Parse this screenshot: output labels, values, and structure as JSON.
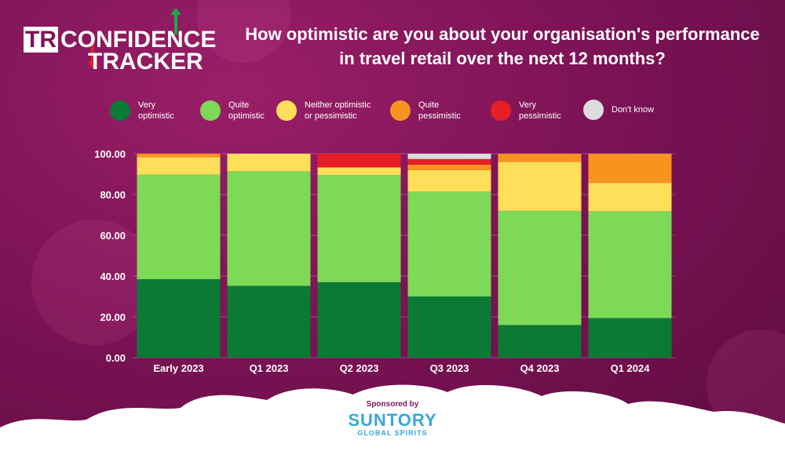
{
  "logo": {
    "tr": "TR",
    "line1_a": "CONFIDEN",
    "line1_b": "C",
    "line1_c": "E",
    "line2": "TRACKER"
  },
  "sponsor": {
    "label": "Sponsored by",
    "brand": "SUNTORY",
    "sub": "GLOBAL SPIRITS"
  },
  "colors": {
    "very_optimistic": "#0a7a35",
    "quite_optimistic": "#7ed957",
    "neither": "#ffde59",
    "quite_pessimistic": "#f8931f",
    "very_pessimistic": "#e61e25",
    "dont_know": "#dcdcdc"
  },
  "chart_data": {
    "type": "bar",
    "stacked": true,
    "title": "How optimistic are you about your organisation's performance in travel retail over the next 12 months?",
    "xlabel": "",
    "ylabel": "",
    "ylim": [
      0,
      100
    ],
    "yticks": [
      "0.00",
      "20.00",
      "40.00",
      "60.00",
      "80.00",
      "100.00"
    ],
    "grid": true,
    "legend_position": "top",
    "categories": [
      "Early 2023",
      "Q1 2023",
      "Q2 2023",
      "Q3 2023",
      "Q4 2023",
      "Q1 2024"
    ],
    "series": [
      {
        "name": "Very optimistic",
        "key": "very_optimistic",
        "legend": [
          "Very",
          "optimistic"
        ],
        "values": [
          38.5,
          35.2,
          37.0,
          30.0,
          16.0,
          19.4
        ]
      },
      {
        "name": "Quite optimistic",
        "key": "quite_optimistic",
        "legend": [
          "Quite",
          "optimistic"
        ],
        "values": [
          51.3,
          56.2,
          52.6,
          51.4,
          56.0,
          52.4
        ]
      },
      {
        "name": "Neither optimistic or pessimistic",
        "key": "neither",
        "legend": [
          "Neither optimistic",
          "or pessimistic"
        ],
        "values": [
          8.5,
          8.6,
          3.7,
          10.6,
          24.0,
          13.9
        ]
      },
      {
        "name": "Quite pessimistic",
        "key": "quite_pessimistic",
        "legend": [
          "Quite",
          "pessimistic"
        ],
        "values": [
          1.7,
          0,
          0,
          2.7,
          4.0,
          14.3
        ]
      },
      {
        "name": "Very pessimistic",
        "key": "very_pessimistic",
        "legend": [
          "Very",
          "pessimistic"
        ],
        "values": [
          0,
          0,
          6.7,
          2.7,
          0,
          0
        ]
      },
      {
        "name": "Don't know",
        "key": "dont_know",
        "legend": [
          "Don't know"
        ],
        "values": [
          0,
          0,
          0,
          2.6,
          0,
          0
        ]
      }
    ]
  }
}
